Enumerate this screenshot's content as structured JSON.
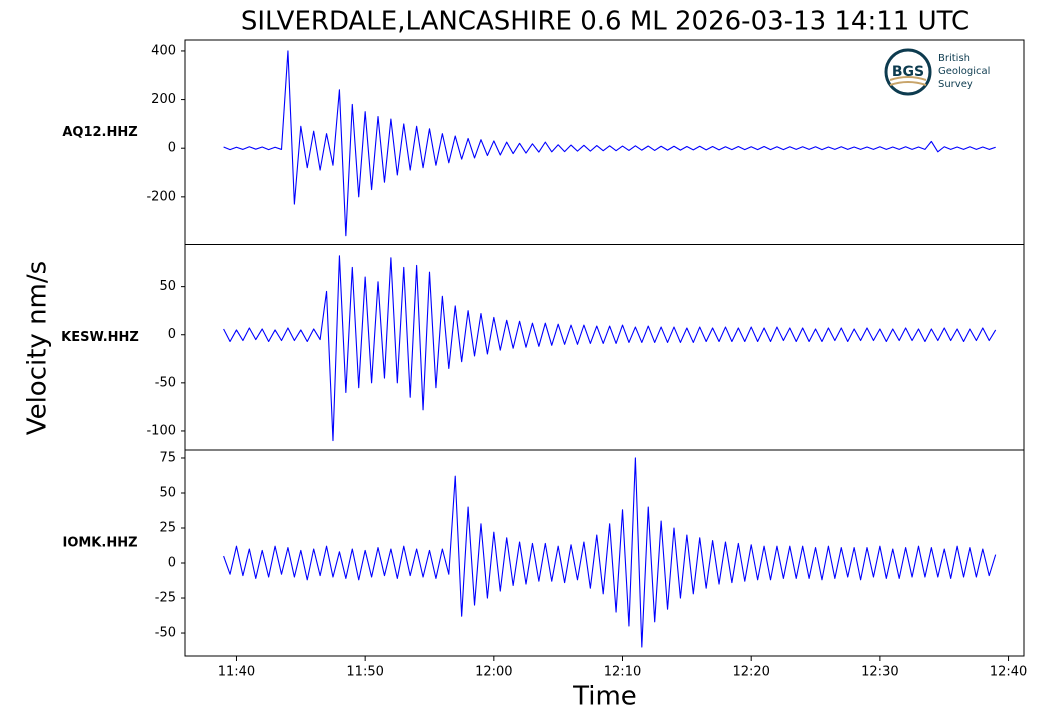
{
  "title": "SILVERDALE,LANCASHIRE 0.6 ML   2026-03-13 14:11 UTC",
  "y_label": "Velocity nm/s",
  "x_label": "Time",
  "logo": {
    "mark": "BGS",
    "lines": [
      "British",
      "Geological",
      "Survey"
    ]
  },
  "chart_data": {
    "type": "line",
    "x": [
      699,
      699.5,
      700,
      700.5,
      701,
      701.5,
      702,
      702.5,
      703,
      703.5,
      704,
      704.5,
      705,
      705.5,
      706,
      706.5,
      707,
      707.5,
      708,
      708.5,
      709,
      709.5,
      710,
      710.5,
      711,
      711.5,
      712,
      712.5,
      713,
      713.5,
      714,
      714.5,
      715,
      715.5,
      716,
      716.5,
      717,
      717.5,
      718,
      718.5,
      719,
      719.5,
      720,
      720.5,
      721,
      721.5,
      722,
      722.5,
      723,
      723.5,
      724,
      724.5,
      725,
      725.5,
      726,
      726.5,
      727,
      727.5,
      728,
      728.5,
      729,
      729.5,
      730,
      730.5,
      731,
      731.5,
      732,
      732.5,
      733,
      733.5,
      734,
      734.5,
      735,
      735.5,
      736,
      736.5,
      737,
      737.5,
      738,
      738.5,
      739,
      739.5,
      740,
      740.5,
      741,
      741.5,
      742,
      742.5,
      743,
      743.5,
      744,
      744.5,
      745,
      745.5,
      746,
      746.5,
      747,
      747.5,
      748,
      748.5,
      749,
      749.5,
      750,
      750.5,
      751,
      751.5,
      752,
      752.5,
      753,
      753.5,
      754,
      754.5,
      755,
      755.5,
      756,
      756.5,
      757,
      757.5,
      758,
      758.5,
      759
    ],
    "xlim": [
      696,
      761.2
    ],
    "xticks": [
      {
        "value": 700,
        "label": "11:40"
      },
      {
        "value": 710,
        "label": "11:50"
      },
      {
        "value": 720,
        "label": "12:00"
      },
      {
        "value": 730,
        "label": "12:10"
      },
      {
        "value": 740,
        "label": "12:20"
      },
      {
        "value": 750,
        "label": "12:30"
      },
      {
        "value": 760,
        "label": "12:40"
      }
    ],
    "series": [
      {
        "name": "AQ12.HHZ",
        "color": "#0000ff",
        "ylim": [
          -396,
          445
        ],
        "yticks": [
          -200,
          0,
          200,
          400
        ],
        "values": [
          5,
          -6,
          4,
          -5,
          6,
          -4,
          5,
          -6,
          4,
          -5,
          400,
          -230,
          90,
          -80,
          70,
          -90,
          60,
          -70,
          240,
          -360,
          180,
          -200,
          150,
          -170,
          130,
          -140,
          120,
          -110,
          100,
          -90,
          90,
          -80,
          80,
          -70,
          60,
          -60,
          50,
          -45,
          40,
          -40,
          35,
          -30,
          30,
          -28,
          25,
          -22,
          20,
          -20,
          18,
          -16,
          25,
          -15,
          14,
          -14,
          13,
          -12,
          12,
          -12,
          11,
          -10,
          10,
          -10,
          9,
          -9,
          10,
          -8,
          9,
          -9,
          8,
          -8,
          8,
          -8,
          7,
          -7,
          8,
          -7,
          7,
          -7,
          6,
          -6,
          7,
          -6,
          6,
          -6,
          7,
          -6,
          6,
          -6,
          6,
          -5,
          6,
          -5,
          6,
          -6,
          5,
          -5,
          6,
          -5,
          5,
          -5,
          5,
          -5,
          6,
          -5,
          5,
          -5,
          6,
          -5,
          5,
          -5,
          28,
          -15,
          6,
          -5,
          5,
          -5,
          6,
          -5,
          5,
          -5,
          4
        ]
      },
      {
        "name": "KESW.HHZ",
        "color": "#0000ff",
        "ylim": [
          -119.8,
          93.8
        ],
        "yticks": [
          -100,
          -50,
          0,
          50
        ],
        "values": [
          6,
          -7,
          5,
          -6,
          7,
          -5,
          6,
          -7,
          5,
          -6,
          7,
          -6,
          5,
          -7,
          6,
          -5,
          45,
          -110,
          82,
          -60,
          70,
          -55,
          60,
          -50,
          55,
          -45,
          80,
          -50,
          70,
          -65,
          72,
          -78,
          65,
          -55,
          40,
          -35,
          30,
          -28,
          25,
          -22,
          22,
          -20,
          18,
          -16,
          15,
          -14,
          14,
          -13,
          12,
          -12,
          12,
          -11,
          11,
          -10,
          10,
          -10,
          10,
          -9,
          9,
          -9,
          9,
          -9,
          10,
          -8,
          8,
          -8,
          9,
          -8,
          8,
          -8,
          8,
          -8,
          7,
          -8,
          8,
          -7,
          7,
          -7,
          8,
          -7,
          7,
          -7,
          8,
          -7,
          7,
          -7,
          8,
          -6,
          7,
          -7,
          7,
          -7,
          6,
          -7,
          7,
          -6,
          7,
          -7,
          6,
          -6,
          7,
          -6,
          6,
          -7,
          6,
          -6,
          7,
          -6,
          6,
          -7,
          6,
          -6,
          7,
          -6,
          6,
          -7,
          6,
          -6,
          7,
          -6,
          5
        ]
      },
      {
        "name": "IOMK.HHZ",
        "color": "#0000ff",
        "ylim": [
          -66.4,
          80.7
        ],
        "yticks": [
          -50,
          -25,
          0,
          25,
          50,
          75
        ],
        "values": [
          5,
          -8,
          12,
          -9,
          10,
          -11,
          9,
          -10,
          12,
          -8,
          11,
          -10,
          9,
          -12,
          10,
          -9,
          12,
          -10,
          8,
          -11,
          10,
          -12,
          9,
          -10,
          11,
          -9,
          10,
          -11,
          12,
          -9,
          10,
          -10,
          9,
          -11,
          10,
          -8,
          62,
          -38,
          40,
          -30,
          28,
          -25,
          22,
          -20,
          18,
          -16,
          15,
          -15,
          14,
          -13,
          14,
          -13,
          12,
          -14,
          13,
          -12,
          15,
          -18,
          20,
          -22,
          28,
          -35,
          38,
          -45,
          75,
          -60,
          40,
          -42,
          30,
          -33,
          25,
          -25,
          20,
          -22,
          18,
          -18,
          16,
          -15,
          15,
          -14,
          14,
          -13,
          13,
          -12,
          12,
          -12,
          12,
          -11,
          12,
          -11,
          12,
          -11,
          11,
          -12,
          12,
          -11,
          11,
          -10,
          11,
          -12,
          11,
          -10,
          12,
          -11,
          10,
          -11,
          11,
          -10,
          12,
          -10,
          11,
          -10,
          10,
          -11,
          12,
          -10,
          11,
          -10,
          10,
          -9,
          6
        ]
      }
    ]
  }
}
